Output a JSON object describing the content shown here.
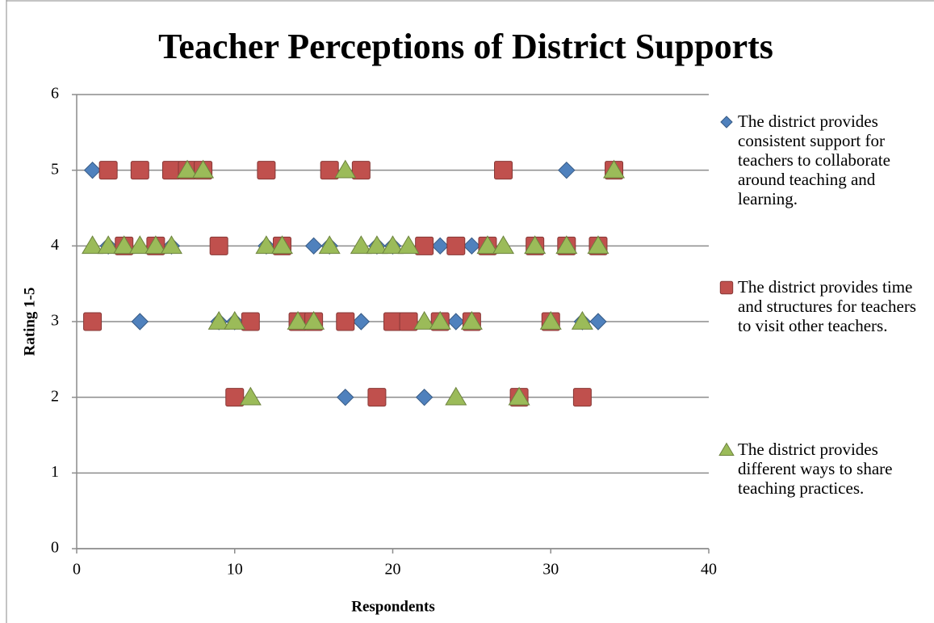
{
  "chart_data": {
    "type": "scatter",
    "title": "Teacher Perceptions of District Supports",
    "x_label": "Respondents",
    "y_label": "Rating 1-5",
    "x": [
      1,
      2,
      3,
      4,
      5,
      6,
      7,
      8,
      9,
      10,
      11,
      12,
      13,
      14,
      15,
      16,
      17,
      18,
      19,
      20,
      21,
      22,
      23,
      24,
      25,
      26,
      27,
      28,
      29,
      30,
      31,
      32,
      33,
      34
    ],
    "series": [
      {
        "name": "The district provides consistent support for teachers to collaborate around teaching and learning.",
        "color": "#4f81bd",
        "marker": "diamond",
        "values": [
          5,
          4,
          4,
          3,
          4,
          4,
          5,
          5,
          3,
          3,
          3,
          4,
          4,
          3,
          4,
          4,
          2,
          3,
          4,
          4,
          3,
          2,
          4,
          3,
          4,
          4,
          5,
          2,
          4,
          3,
          5,
          3,
          3,
          5
        ]
      },
      {
        "name": "The district provides time and structures for teachers to visit other teachers.",
        "color": "#c0504d",
        "marker": "square",
        "values": [
          3,
          5,
          4,
          5,
          4,
          5,
          5,
          5,
          4,
          2,
          3,
          5,
          4,
          3,
          3,
          5,
          3,
          5,
          2,
          3,
          3,
          4,
          3,
          4,
          3,
          4,
          5,
          2,
          4,
          3,
          4,
          2,
          4,
          5
        ]
      },
      {
        "name": "The district provides different ways to share teaching practices.",
        "color": "#9bbb59",
        "marker": "triangle",
        "values": [
          4,
          4,
          4,
          4,
          4,
          4,
          5,
          5,
          3,
          3,
          2,
          4,
          4,
          3,
          3,
          4,
          5,
          4,
          4,
          4,
          4,
          3,
          3,
          2,
          3,
          4,
          4,
          2,
          4,
          3,
          4,
          3,
          4,
          5
        ]
      }
    ],
    "xlim": [
      0,
      40
    ],
    "xticks": [
      0,
      10,
      20,
      30,
      40
    ],
    "ylim": [
      0,
      6
    ],
    "yticks": [
      0,
      1,
      2,
      3,
      4,
      5,
      6
    ],
    "grid": true
  }
}
